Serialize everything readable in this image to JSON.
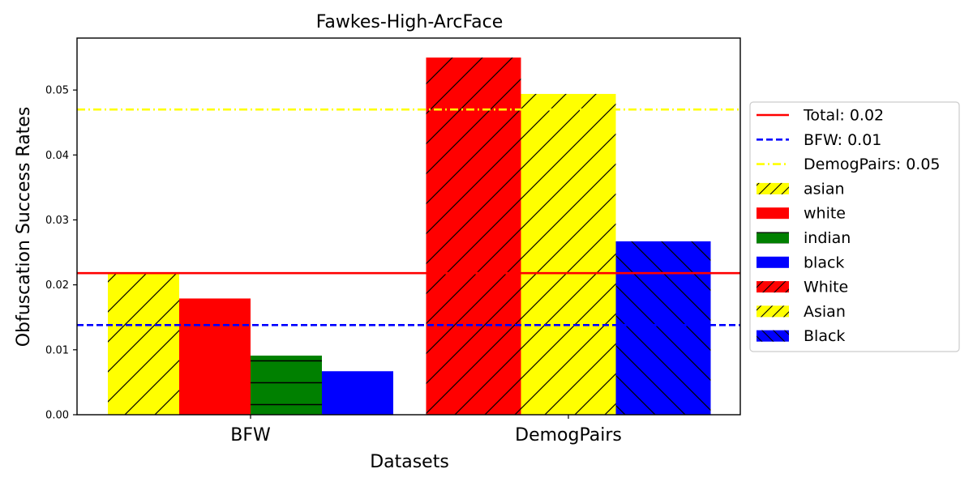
{
  "chart_data": {
    "type": "bar",
    "title": "Fawkes-High-ArcFace",
    "xlabel": "Datasets",
    "ylabel": "Obfuscation Success Rates",
    "ylim": [
      0,
      0.058
    ],
    "yticks": [
      "0.00",
      "0.01",
      "0.02",
      "0.03",
      "0.04",
      "0.05"
    ],
    "categories": [
      "BFW",
      "DemogPairs"
    ],
    "groups": [
      {
        "category": "BFW",
        "bars": [
          {
            "label": "asian",
            "value": 0.0217,
            "color": "#ffff00",
            "hatch": "forward"
          },
          {
            "label": "white",
            "value": 0.0179,
            "color": "#ff0000",
            "hatch": "none"
          },
          {
            "label": "indian",
            "value": 0.0091,
            "color": "#008000",
            "hatch": "horizontal"
          },
          {
            "label": "black",
            "value": 0.0067,
            "color": "#0000ff",
            "hatch": "none"
          }
        ]
      },
      {
        "category": "DemogPairs",
        "bars": [
          {
            "label": "White",
            "value": 0.055,
            "color": "#ff0000",
            "hatch": "forward"
          },
          {
            "label": "Asian",
            "value": 0.0494,
            "color": "#ffff00",
            "hatch": "forward"
          },
          {
            "label": "Black",
            "value": 0.0267,
            "color": "#0000ff",
            "hatch": "back"
          }
        ]
      }
    ],
    "reference_lines": [
      {
        "label": "Total: 0.02",
        "value": 0.0218,
        "color": "#ff0000",
        "style": "solid"
      },
      {
        "label": "BFW: 0.01",
        "value": 0.0138,
        "color": "#0000ff",
        "style": "dashed"
      },
      {
        "label": "DemogPairs: 0.05",
        "value": 0.047,
        "color": "#ffff00",
        "style": "dashdot"
      }
    ],
    "legend": {
      "placement": "right",
      "entries": [
        {
          "label": "Total: 0.02",
          "kind": "line",
          "color": "#ff0000",
          "style": "solid"
        },
        {
          "label": "BFW: 0.01",
          "kind": "line",
          "color": "#0000ff",
          "style": "dashed"
        },
        {
          "label": "DemogPairs: 0.05",
          "kind": "line",
          "color": "#ffff00",
          "style": "dashdot"
        },
        {
          "label": "asian",
          "kind": "patch",
          "color": "#ffff00",
          "hatch": "forward"
        },
        {
          "label": "white",
          "kind": "patch",
          "color": "#ff0000",
          "hatch": "none"
        },
        {
          "label": "indian",
          "kind": "patch",
          "color": "#008000",
          "hatch": "horizontal"
        },
        {
          "label": "black",
          "kind": "patch",
          "color": "#0000ff",
          "hatch": "none"
        },
        {
          "label": "White",
          "kind": "patch",
          "color": "#ff0000",
          "hatch": "forward"
        },
        {
          "label": "Asian",
          "kind": "patch",
          "color": "#ffff00",
          "hatch": "forward"
        },
        {
          "label": "Black",
          "kind": "patch",
          "color": "#0000ff",
          "hatch": "back"
        }
      ]
    },
    "grid": false
  }
}
